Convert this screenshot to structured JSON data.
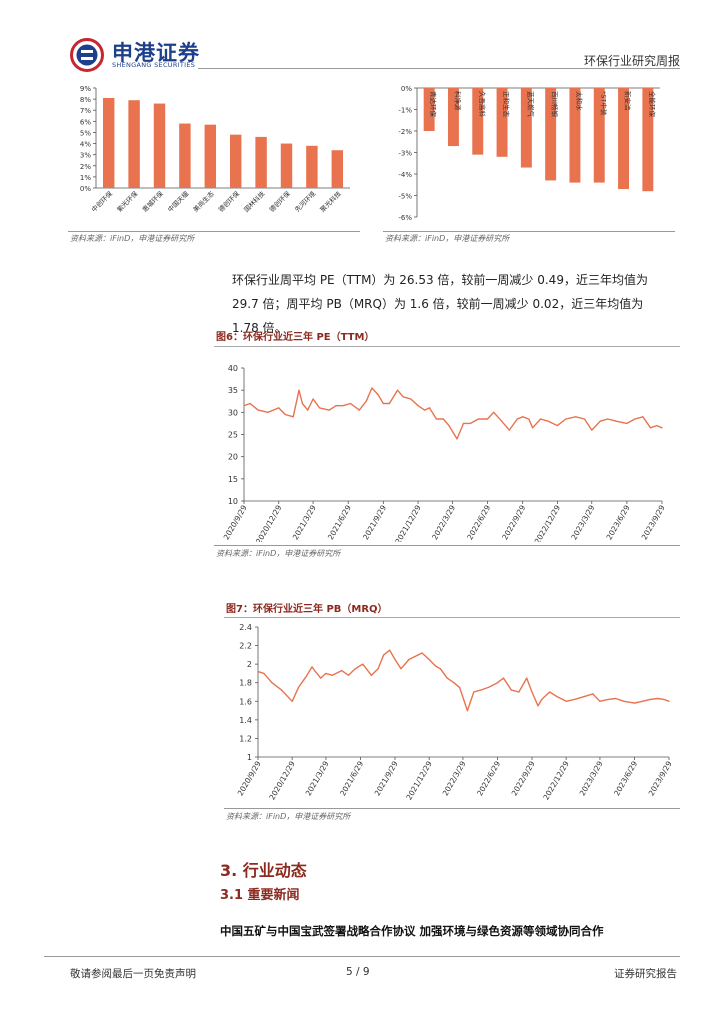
{
  "header": {
    "brand_cn": "申港证券",
    "brand_en": "SHENGANG SECURITIES",
    "report_title": "环保行业研究周报"
  },
  "colors": {
    "accent": "#E8734E",
    "brand": "#1E3F8C",
    "heading": "#8B2A1E"
  },
  "icons": {
    "logo": "shengang-logo-icon"
  },
  "source_note": "资料来源：iFinD，申港证券研究所",
  "paragraph": "环保行业周平均 PE（TTM）为 26.53 倍，较前一周减少 0.49，近三年均值为 29.7 倍；周平均 PB（MRQ）为 1.6 倍，较前一周减少 0.02，近三年均值为 1.78 倍。",
  "fig6_title": "图6：环保行业近三年 PE（TTM）",
  "fig7_title": "图7：环保行业近三年 PB（MRQ）",
  "section": {
    "title": "3. 行业动态",
    "subtitle": "3.1 重要新闻"
  },
  "news_headline": "中国五矿与中国宝武签署战略合作协议 加强环境与绿色资源等领域协同合作",
  "footer": {
    "left": "敬请参阅最后一页免责声明",
    "page": "5 / 9",
    "right": "证券研究报告"
  },
  "chart_data": [
    {
      "type": "bar",
      "categories": [
        "中创环保",
        "紫光环保",
        "惠城环保",
        "中国天楹",
        "美尚生态",
        "德创环保",
        "国林科技",
        "德创环保",
        "先河环境",
        "聚光科技"
      ],
      "values": [
        8.1,
        7.9,
        7.6,
        5.8,
        5.7,
        4.8,
        4.6,
        4.0,
        3.8,
        3.4
      ],
      "yticks": [
        "0%",
        "1%",
        "2%",
        "3%",
        "4%",
        "5%",
        "6%",
        "7%",
        "8%",
        "9%"
      ],
      "ylim": [
        0,
        9
      ],
      "unit": "%"
    },
    {
      "type": "bar",
      "categories": [
        "青达环保",
        "科净源",
        "久吾高科",
        "正和生态",
        "蓝天燃气",
        "百川畅银",
        "太和水",
        "*ST中装",
        "新安洁",
        "全能环保"
      ],
      "values": [
        -2.0,
        -2.7,
        -3.1,
        -3.2,
        -3.7,
        -4.3,
        -4.4,
        -4.4,
        -4.7,
        -4.8
      ],
      "yticks": [
        "0%",
        "-1%",
        "-2%",
        "-3%",
        "-4%",
        "-5%",
        "-6%"
      ],
      "ylim": [
        -6,
        0
      ],
      "unit": "%"
    },
    {
      "type": "line",
      "title": "PE（TTM）",
      "x_ticks": [
        "2020/9/29",
        "2020/12/29",
        "2021/3/29",
        "2021/6/29",
        "2021/9/29",
        "2021/12/29",
        "2022/3/29",
        "2022/6/29",
        "2022/9/29",
        "2022/12/29",
        "2023/3/29",
        "2023/6/29",
        "2023/9/29"
      ],
      "yticks": [
        "10",
        "15",
        "20",
        "25",
        "30",
        "35",
        "40"
      ],
      "ylim": [
        10,
        40
      ],
      "x": [
        "2020/9/29",
        "2020/10/15",
        "2020/11/5",
        "2020/12/1",
        "2020/12/29",
        "2021/1/15",
        "2021/2/5",
        "2021/2/20",
        "2021/3/1",
        "2021/3/15",
        "2021/3/29",
        "2021/4/15",
        "2021/5/10",
        "2021/5/28",
        "2021/6/15",
        "2021/7/5",
        "2021/7/28",
        "2021/8/15",
        "2021/8/30",
        "2021/9/15",
        "2021/9/29",
        "2021/10/15",
        "2021/11/5",
        "2021/11/20",
        "2021/12/10",
        "2021/12/29",
        "2022/1/15",
        "2022/1/28",
        "2022/2/15",
        "2022/3/5",
        "2022/3/20",
        "2022/4/10",
        "2022/4/27",
        "2022/5/15",
        "2022/6/5",
        "2022/6/29",
        "2022/7/15",
        "2022/8/5",
        "2022/8/25",
        "2022/9/15",
        "2022/9/29",
        "2022/10/15",
        "2022/10/25",
        "2022/11/15",
        "2022/12/5",
        "2022/12/29",
        "2023/1/20",
        "2023/2/15",
        "2023/3/10",
        "2023/3/29",
        "2023/4/20",
        "2023/5/10",
        "2023/6/1",
        "2023/6/29",
        "2023/7/20",
        "2023/8/10",
        "2023/8/30",
        "2023/9/15",
        "2023/9/29"
      ],
      "values": [
        31.5,
        32.0,
        30.5,
        30.0,
        31.0,
        29.5,
        29.0,
        35.0,
        32.0,
        30.5,
        33.0,
        31.0,
        30.5,
        31.5,
        31.5,
        32.0,
        30.5,
        32.5,
        35.5,
        34.0,
        32.0,
        32.0,
        35.0,
        33.5,
        33.0,
        31.5,
        30.5,
        31.0,
        28.5,
        28.5,
        27.0,
        24.0,
        27.5,
        27.5,
        28.5,
        28.5,
        30.0,
        28.0,
        26.0,
        28.5,
        29.0,
        28.5,
        26.5,
        28.5,
        28.0,
        27.0,
        28.5,
        29.0,
        28.5,
        26.0,
        28.0,
        28.5,
        28.0,
        27.5,
        28.5,
        29.0,
        26.5,
        27.0,
        26.5
      ]
    },
    {
      "type": "line",
      "title": "PB（MRQ）",
      "x_ticks": [
        "2020/9/29",
        "2020/12/29",
        "2021/3/29",
        "2021/6/29",
        "2021/9/29",
        "2021/12/29",
        "2022/3/29",
        "2022/6/29",
        "2022/9/29",
        "2022/12/29",
        "2023/3/29",
        "2023/6/29",
        "2023/9/29"
      ],
      "yticks": [
        "1",
        "1.2",
        "1.4",
        "1.6",
        "1.8",
        "2",
        "2.2",
        "2.4"
      ],
      "ylim": [
        1,
        2.4
      ],
      "x": [
        "2020/9/29",
        "2020/10/15",
        "2020/11/5",
        "2020/12/1",
        "2020/12/29",
        "2021/1/15",
        "2021/2/5",
        "2021/2/20",
        "2021/3/1",
        "2021/3/15",
        "2021/3/29",
        "2021/4/15",
        "2021/5/10",
        "2021/5/28",
        "2021/6/15",
        "2021/7/5",
        "2021/7/28",
        "2021/8/15",
        "2021/8/30",
        "2021/9/15",
        "2021/9/29",
        "2021/10/15",
        "2021/11/5",
        "2021/11/20",
        "2021/12/10",
        "2021/12/29",
        "2022/1/15",
        "2022/1/28",
        "2022/2/15",
        "2022/3/5",
        "2022/3/20",
        "2022/4/10",
        "2022/4/27",
        "2022/5/15",
        "2022/6/5",
        "2022/6/29",
        "2022/7/15",
        "2022/8/5",
        "2022/8/25",
        "2022/9/15",
        "2022/9/29",
        "2022/10/15",
        "2022/10/25",
        "2022/11/15",
        "2022/12/5",
        "2022/12/29",
        "2023/1/20",
        "2023/2/15",
        "2023/3/10",
        "2023/3/29",
        "2023/4/20",
        "2023/5/10",
        "2023/6/1",
        "2023/6/29",
        "2023/7/20",
        "2023/8/10",
        "2023/8/30",
        "2023/9/15",
        "2023/9/29"
      ],
      "values": [
        1.92,
        1.9,
        1.8,
        1.72,
        1.6,
        1.75,
        1.87,
        1.97,
        1.92,
        1.85,
        1.9,
        1.88,
        1.93,
        1.88,
        1.95,
        2.0,
        1.88,
        1.95,
        2.1,
        2.15,
        2.05,
        1.95,
        2.05,
        2.08,
        2.12,
        2.05,
        1.98,
        1.95,
        1.85,
        1.8,
        1.75,
        1.5,
        1.7,
        1.72,
        1.75,
        1.8,
        1.85,
        1.72,
        1.7,
        1.85,
        1.7,
        1.55,
        1.62,
        1.7,
        1.65,
        1.6,
        1.62,
        1.65,
        1.68,
        1.6,
        1.62,
        1.63,
        1.6,
        1.58,
        1.6,
        1.62,
        1.63,
        1.62,
        1.6
      ]
    }
  ]
}
